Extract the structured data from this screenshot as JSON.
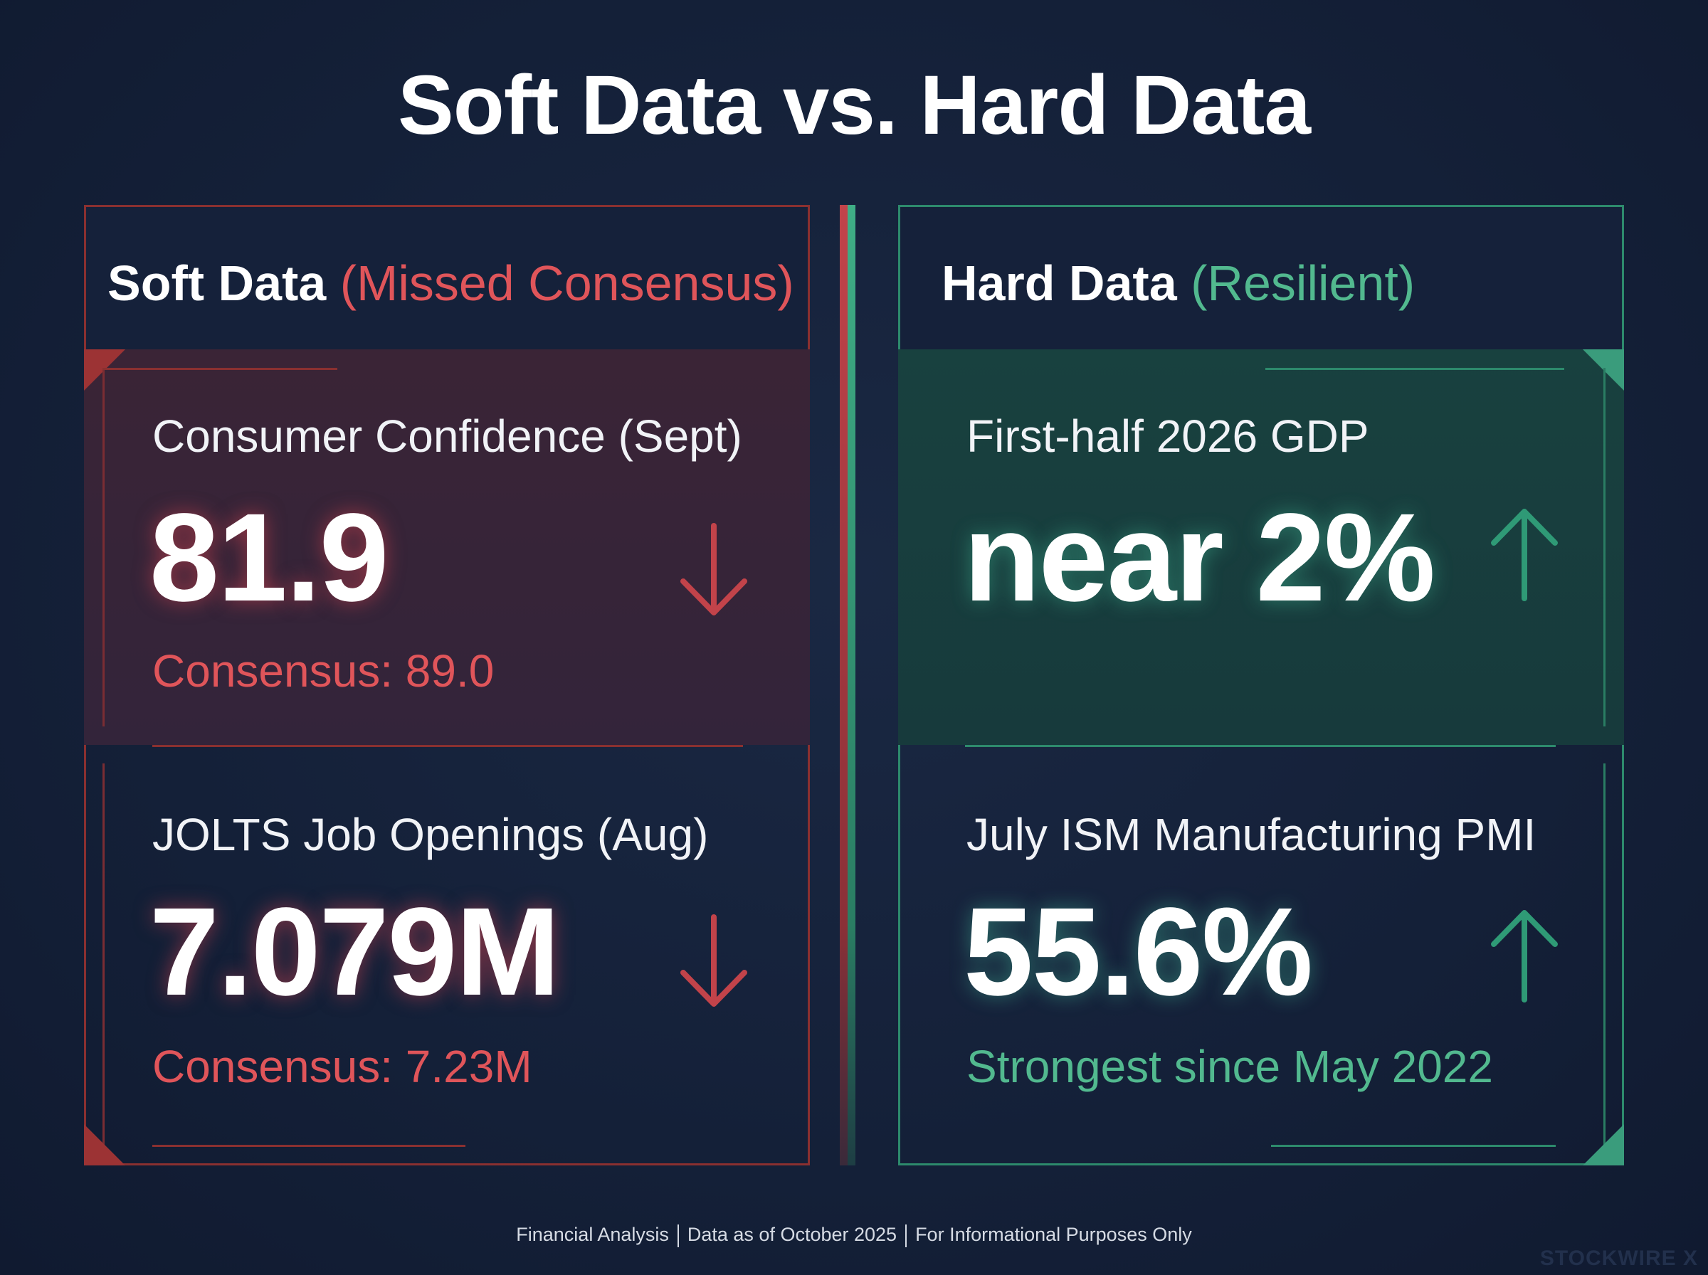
{
  "title": "Soft Data vs. Hard Data",
  "soft": {
    "heading": "Soft Data",
    "subheading": "(Missed Consensus)",
    "accent_color": "#e0555a",
    "cards": [
      {
        "label": "Consumer Confidence (Sept)",
        "value": "81.9",
        "note": "Consensus: 89.0",
        "trend_icon": "arrow-down-icon"
      },
      {
        "label": "JOLTS Job Openings (Aug)",
        "value": "7.079M",
        "note": "Consensus: 7.23M",
        "trend_icon": "arrow-down-icon"
      }
    ]
  },
  "hard": {
    "heading": "Hard Data",
    "subheading": "(Resilient)",
    "accent_color": "#52b98f",
    "cards": [
      {
        "label": "First-half 2026 GDP",
        "value": "near 2%",
        "trend_icon": "arrow-up-icon"
      },
      {
        "label": "July ISM Manufacturing PMI",
        "value": "55.6%",
        "note": "Strongest since May 2022",
        "trend_icon": "arrow-up-icon"
      }
    ]
  },
  "footer": {
    "parts": [
      "Financial Analysis",
      "Data as of October 2025",
      "For Informational Purposes Only"
    ]
  },
  "watermark": "STOCKWIRE X"
}
